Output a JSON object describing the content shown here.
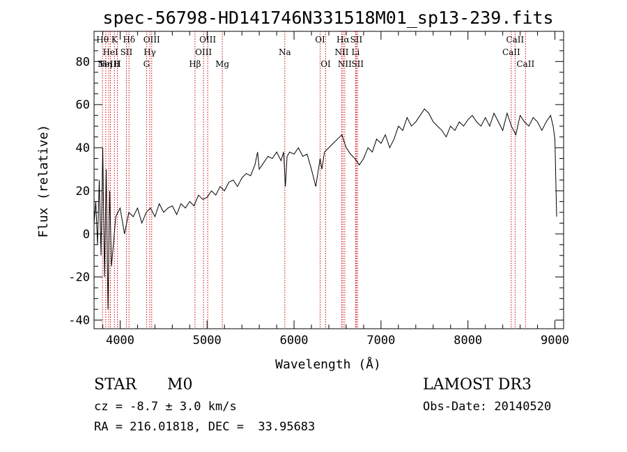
{
  "chart_data": {
    "type": "line",
    "title": "spec-56798-HD141746N331518M01_sp13-239.fits",
    "xlabel": "Wavelength (Å)",
    "ylabel": "Flux (relative)",
    "xlim": [
      3700,
      9100
    ],
    "ylim": [
      -44,
      94
    ],
    "xticks": [
      4000,
      5000,
      6000,
      7000,
      8000,
      9000
    ],
    "yticks": [
      -40,
      -20,
      0,
      20,
      40,
      60,
      80
    ],
    "grid": false,
    "line_color": "#000000",
    "marker_color": "#cc0000",
    "series": [
      {
        "x": [
          3700,
          3720,
          3740,
          3760,
          3780,
          3800,
          3820,
          3840,
          3860,
          3880,
          3900,
          3950,
          4000,
          4050,
          4100,
          4150,
          4200,
          4250,
          4300,
          4350,
          4400,
          4450,
          4500,
          4550,
          4600,
          4650,
          4700,
          4750,
          4800,
          4850,
          4900,
          4950,
          5000,
          5050,
          5100,
          5150,
          5200,
          5250,
          5300,
          5350,
          5400,
          5450,
          5500,
          5550,
          5580,
          5600,
          5650,
          5700,
          5750,
          5800,
          5850,
          5880,
          5900,
          5920,
          5950,
          6000,
          6050,
          6100,
          6150,
          6200,
          6250,
          6300,
          6320,
          6350,
          6400,
          6450,
          6500,
          6550,
          6600,
          6650,
          6700,
          6750,
          6800,
          6850,
          6900,
          6950,
          7000,
          7050,
          7100,
          7150,
          7200,
          7250,
          7300,
          7350,
          7400,
          7450,
          7500,
          7550,
          7600,
          7650,
          7700,
          7750,
          7800,
          7850,
          7900,
          7950,
          8000,
          8050,
          8100,
          8150,
          8200,
          8250,
          8300,
          8350,
          8400,
          8450,
          8500,
          8550,
          8600,
          8650,
          8700,
          8750,
          8800,
          8850,
          8900,
          8950,
          8980,
          9000,
          9020
        ],
        "y": [
          5,
          15,
          -5,
          25,
          -10,
          40,
          -20,
          30,
          -35,
          20,
          -15,
          8,
          12,
          0,
          10,
          8,
          12,
          5,
          10,
          12,
          8,
          14,
          10,
          12,
          13,
          9,
          14,
          12,
          15,
          13,
          18,
          16,
          17,
          20,
          18,
          22,
          20,
          24,
          25,
          22,
          26,
          28,
          27,
          32,
          38,
          30,
          33,
          36,
          35,
          38,
          34,
          38,
          22,
          36,
          38,
          37,
          40,
          36,
          37,
          30,
          22,
          35,
          30,
          38,
          40,
          42,
          44,
          46,
          40,
          37,
          35,
          32,
          35,
          40,
          38,
          44,
          42,
          46,
          40,
          44,
          50,
          48,
          54,
          50,
          52,
          55,
          58,
          56,
          52,
          50,
          48,
          45,
          50,
          48,
          52,
          50,
          53,
          55,
          52,
          50,
          54,
          50,
          56,
          52,
          48,
          56,
          50,
          46,
          55,
          52,
          50,
          54,
          52,
          48,
          52,
          55,
          50,
          44,
          8
        ]
      }
    ],
    "lines": [
      {
        "x": 3797,
        "label": "Hθ",
        "row": 0
      },
      {
        "x": 3835,
        "label": "Hη",
        "row": 2
      },
      {
        "x": 3869,
        "label": "NeIII",
        "row": 2
      },
      {
        "x": 3889,
        "label": "HeI",
        "row": 1
      },
      {
        "x": 3934,
        "label": "K",
        "row": 0
      },
      {
        "x": 3969,
        "label": "H",
        "row": 2
      },
      {
        "x": 4072,
        "label": "SII",
        "row": 1
      },
      {
        "x": 4102,
        "label": "Hδ",
        "row": 0
      },
      {
        "x": 4304,
        "label": "G",
        "row": 2
      },
      {
        "x": 4341,
        "label": "Hγ",
        "row": 1
      },
      {
        "x": 4363,
        "label": "OIII",
        "row": 0
      },
      {
        "x": 4861,
        "label": "Hβ",
        "row": 2
      },
      {
        "x": 4959,
        "label": "OIII",
        "row": 1
      },
      {
        "x": 5007,
        "label": "OIII",
        "row": 0
      },
      {
        "x": 5175,
        "label": "Mg",
        "row": 2
      },
      {
        "x": 5894,
        "label": "Na",
        "row": 1
      },
      {
        "x": 6300,
        "label": "OI",
        "row": 0
      },
      {
        "x": 6364,
        "label": "OI",
        "row": 2
      },
      {
        "x": 6548,
        "label": "NII",
        "row": 1
      },
      {
        "x": 6563,
        "label": "Hα",
        "row": 0
      },
      {
        "x": 6583,
        "label": "NII",
        "row": 2
      },
      {
        "x": 6708,
        "label": "Li",
        "row": 1
      },
      {
        "x": 6716,
        "label": "SII",
        "row": 0
      },
      {
        "x": 6731,
        "label": "SII",
        "row": 2
      },
      {
        "x": 8498,
        "label": "CaII",
        "row": 1
      },
      {
        "x": 8542,
        "label": "CaII",
        "row": 0
      },
      {
        "x": 8662,
        "label": "CaII",
        "row": 2
      }
    ]
  },
  "info": {
    "class_label": "STAR",
    "subclass": "M0",
    "redshift": "cz = -8.7 ± 3.0 km/s",
    "coords": "RA = 216.01818, DEC =  33.95683",
    "survey": "LAMOST DR3",
    "obs_date": "Obs-Date: 20140520"
  }
}
